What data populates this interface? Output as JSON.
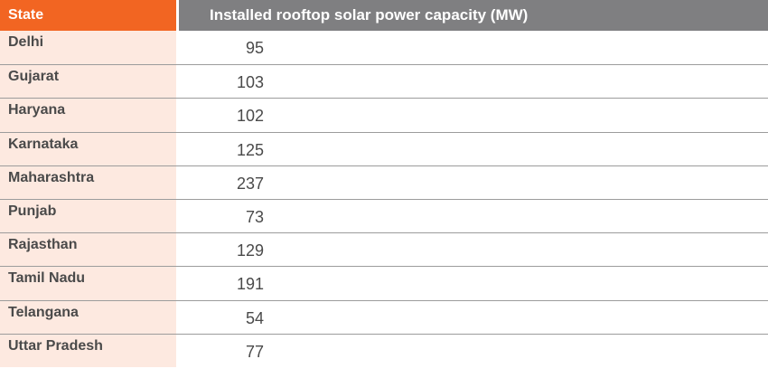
{
  "table": {
    "headers": {
      "state": "State",
      "value": "Installed rooftop solar power capacity (MW)"
    },
    "rows": [
      {
        "state": "Delhi",
        "value": "95"
      },
      {
        "state": "Gujarat",
        "value": "103"
      },
      {
        "state": "Haryana",
        "value": "102"
      },
      {
        "state": "Karnataka",
        "value": "125"
      },
      {
        "state": "Maharashtra",
        "value": "237"
      },
      {
        "state": "Punjab",
        "value": "73"
      },
      {
        "state": "Rajasthan",
        "value": "129"
      },
      {
        "state": "Tamil Nadu",
        "value": "191"
      },
      {
        "state": "Telangana",
        "value": "54"
      },
      {
        "state": "Uttar Pradesh",
        "value": "77"
      }
    ]
  },
  "colors": {
    "header_accent": "#f26522",
    "header_gray": "#7f7f81",
    "state_column_bg": "#fde9e0"
  }
}
